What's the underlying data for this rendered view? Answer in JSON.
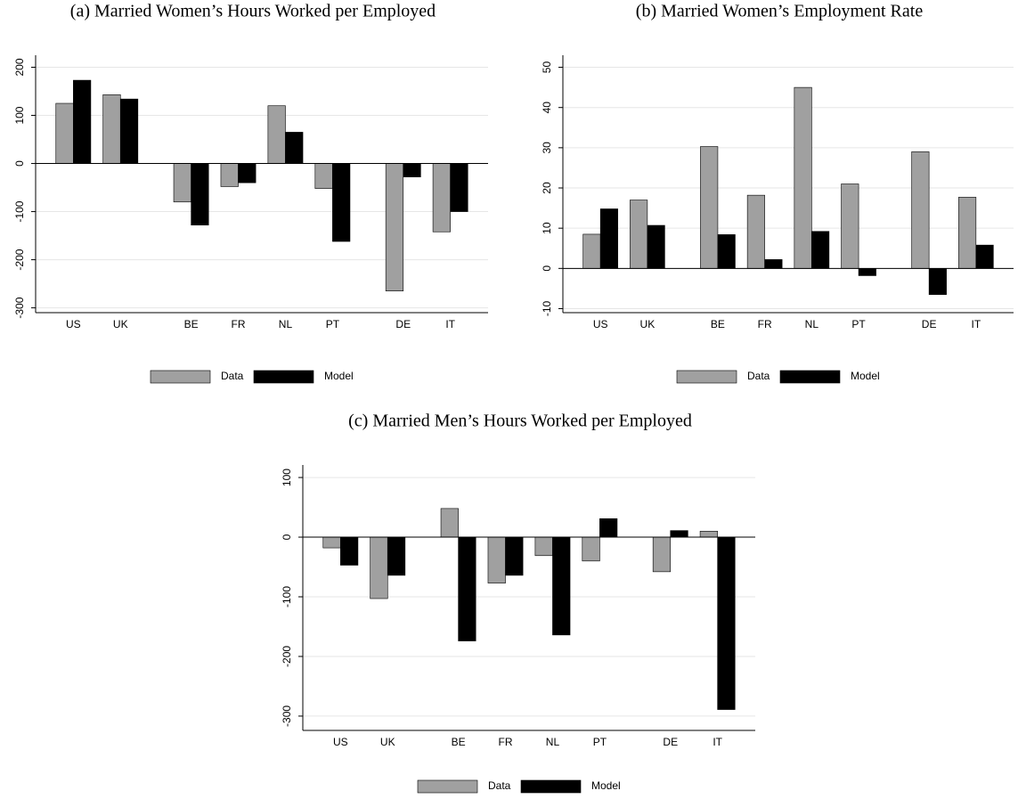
{
  "chart_data": [
    {
      "type": "bar",
      "title": "(a) Married Women’s Hours Worked per Employed",
      "categories": [
        "US",
        "UK",
        null,
        "BE",
        "FR",
        "NL",
        "PT",
        null,
        "DE",
        "IT"
      ],
      "series": [
        {
          "name": "Data",
          "color": "#a0a0a0",
          "values": [
            125,
            143,
            null,
            -80,
            -48,
            120,
            -52,
            null,
            -265,
            -142
          ]
        },
        {
          "name": "Model",
          "color": "#000000",
          "values": [
            173,
            134,
            null,
            -128,
            -40,
            65,
            -162,
            null,
            -28,
            -100
          ]
        }
      ],
      "ylim": [
        -310,
        225
      ],
      "yticks": [
        -300,
        -200,
        -100,
        0,
        100,
        200
      ],
      "grid": true
    },
    {
      "type": "bar",
      "title": "(b) Married Women’s Employment Rate",
      "categories": [
        "US",
        "UK",
        null,
        "BE",
        "FR",
        "NL",
        "PT",
        null,
        "DE",
        "IT"
      ],
      "series": [
        {
          "name": "Data",
          "color": "#a0a0a0",
          "values": [
            8.5,
            17,
            null,
            30.3,
            18.2,
            45,
            21,
            null,
            29,
            17.7
          ]
        },
        {
          "name": "Model",
          "color": "#000000",
          "values": [
            14.8,
            10.7,
            null,
            8.4,
            2.2,
            9.2,
            -1.8,
            null,
            -6.5,
            5.8
          ]
        }
      ],
      "ylim": [
        -11,
        53
      ],
      "yticks": [
        -10,
        0,
        10,
        20,
        30,
        40,
        50
      ],
      "grid": true
    },
    {
      "type": "bar",
      "title": "(c) Married Men’s Hours Worked per Employed",
      "categories": [
        "US",
        "UK",
        null,
        "BE",
        "FR",
        "NL",
        "PT",
        null,
        "DE",
        "IT"
      ],
      "series": [
        {
          "name": "Data",
          "color": "#a0a0a0",
          "values": [
            -18,
            -103,
            null,
            48,
            -77,
            -31,
            -40,
            null,
            -58,
            10
          ]
        },
        {
          "name": "Model",
          "color": "#000000",
          "values": [
            -47,
            -64,
            null,
            -174,
            -64,
            -164,
            31,
            null,
            11,
            -289
          ]
        }
      ],
      "ylim": [
        -324,
        121
      ],
      "yticks": [
        -300,
        -200,
        -100,
        0,
        100
      ],
      "grid": true
    }
  ]
}
